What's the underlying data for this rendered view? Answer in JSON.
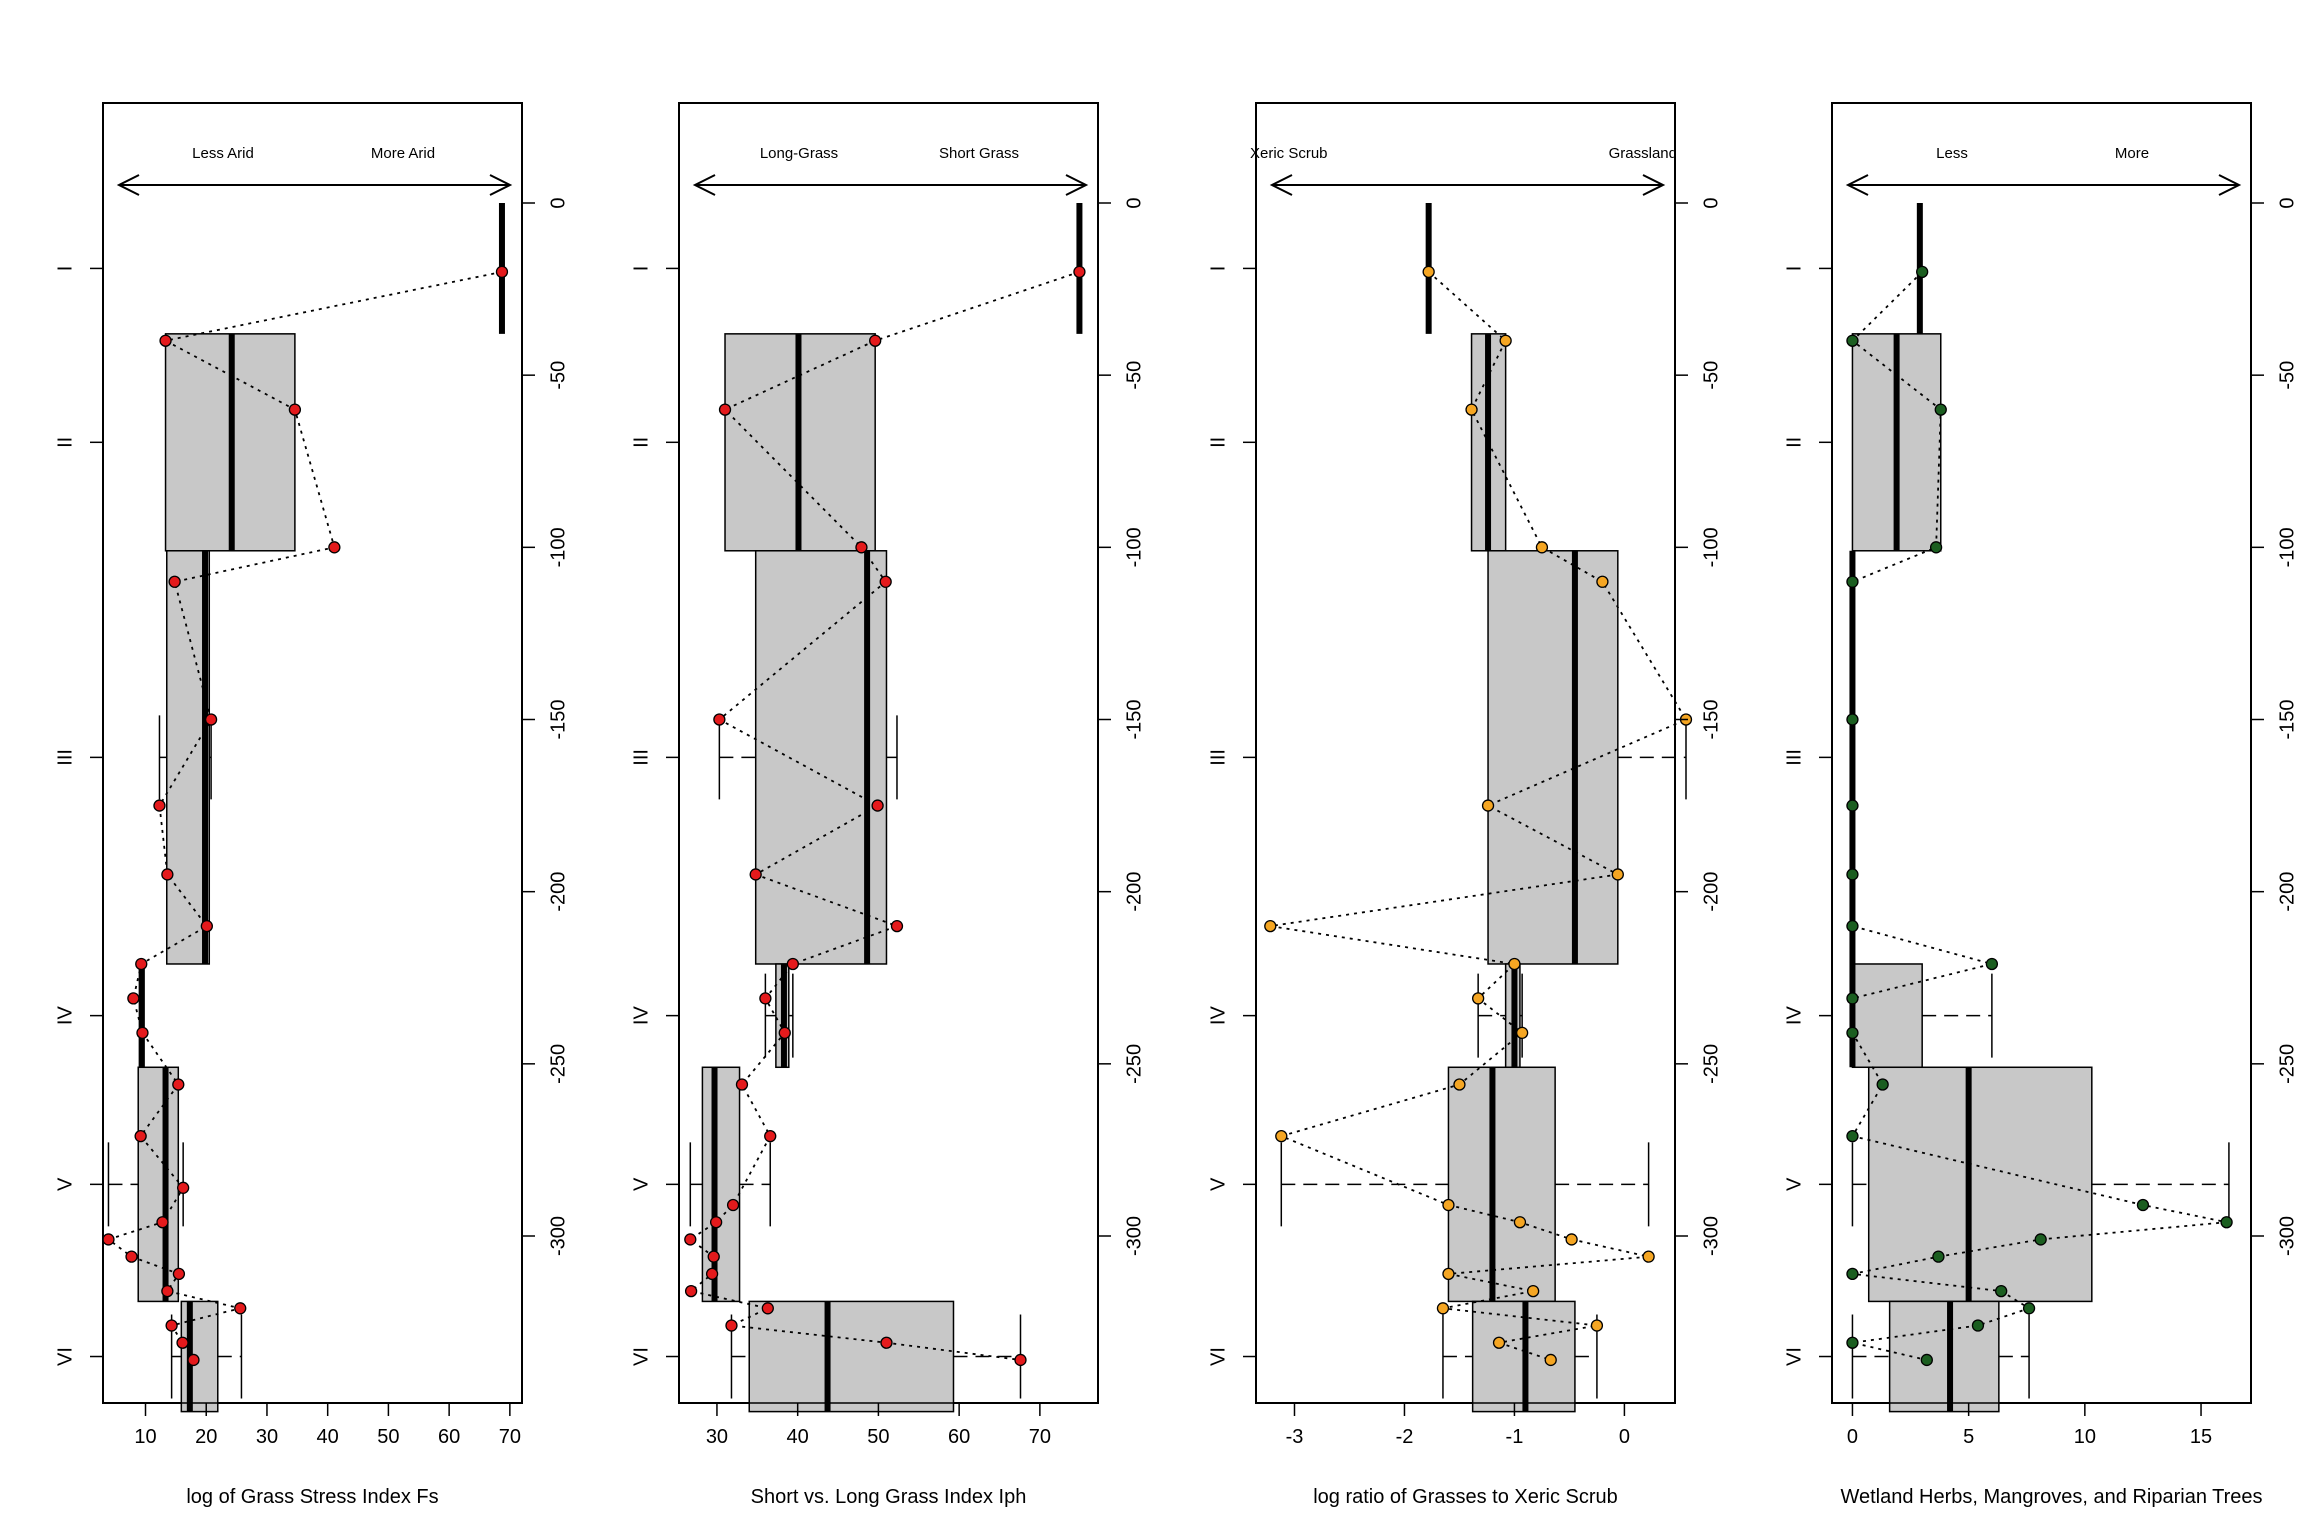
{
  "chart_data": [
    {
      "type": "boxplot-depth-profile",
      "xlabel": "log of Grass Stress Index Fs",
      "xticks": [
        10,
        20,
        30,
        40,
        50,
        60,
        70
      ],
      "xlim": [
        3,
        72
      ],
      "arrow_labels": {
        "left": "Less Arid",
        "right": "More Arid"
      },
      "point_color": "#e41a1c",
      "boxes": [
        {
          "zone": "I",
          "y0": 0,
          "y1": 38,
          "q1": 68.7,
          "median": 68.7,
          "q3": 68.7,
          "wlo": 68.7,
          "whi": 68.7
        },
        {
          "zone": "II",
          "y0": 38,
          "y1": 101,
          "q1": 13.3,
          "median": 24.2,
          "q3": 34.6,
          "wlo": 13.3,
          "whi": 34.6
        },
        {
          "zone": "III",
          "y0": 101,
          "y1": 221,
          "q1": 13.5,
          "median": 19.8,
          "q3": 20.5,
          "wlo": 12.3,
          "whi": 20.8
        },
        {
          "zone": "IV",
          "y0": 221,
          "y1": 251,
          "q1": 9.0,
          "median": 9.4,
          "q3": 9.6,
          "wlo": 9.0,
          "whi": 9.6
        },
        {
          "zone": "V",
          "y0": 251,
          "y1": 319,
          "q1": 8.8,
          "median": 13.3,
          "q3": 15.4,
          "wlo": 3.9,
          "whi": 16.2
        },
        {
          "zone": "VI",
          "y0": 319,
          "y1": 351,
          "q1": 15.9,
          "median": 17.3,
          "q3": 21.9,
          "wlo": 14.3,
          "whi": 25.8
        }
      ],
      "points": [
        [
          68.7,
          20
        ],
        [
          13.3,
          40
        ],
        [
          34.6,
          60
        ],
        [
          41.1,
          100
        ],
        [
          14.8,
          110
        ],
        [
          20.8,
          150
        ],
        [
          12.3,
          175
        ],
        [
          13.6,
          195
        ],
        [
          20.1,
          210
        ],
        [
          9.3,
          221
        ],
        [
          8.0,
          231
        ],
        [
          9.5,
          241
        ],
        [
          15.4,
          256
        ],
        [
          9.2,
          271
        ],
        [
          16.2,
          286
        ],
        [
          12.8,
          296
        ],
        [
          3.9,
          301
        ],
        [
          7.7,
          306
        ],
        [
          15.5,
          311
        ],
        [
          13.6,
          316
        ],
        [
          25.6,
          321
        ],
        [
          14.3,
          326
        ],
        [
          16.1,
          331
        ],
        [
          17.9,
          336
        ]
      ]
    },
    {
      "type": "boxplot-depth-profile",
      "xlabel": "Short vs. Long Grass Index Iph",
      "xticks": [
        30,
        40,
        50,
        60,
        70
      ],
      "xlim": [
        25.3,
        77.2
      ],
      "arrow_labels": {
        "left": "Long-Grass",
        "right": "Short Grass"
      },
      "point_color": "#e41a1c",
      "boxes": [
        {
          "zone": "I",
          "y0": 0,
          "y1": 38,
          "q1": 74.9,
          "median": 74.9,
          "q3": 74.9,
          "wlo": 74.9,
          "whi": 74.9
        },
        {
          "zone": "II",
          "y0": 38,
          "y1": 101,
          "q1": 31.0,
          "median": 40.1,
          "q3": 49.6,
          "wlo": 31.0,
          "whi": 49.6
        },
        {
          "zone": "III",
          "y0": 101,
          "y1": 221,
          "q1": 34.8,
          "median": 48.6,
          "q3": 51.0,
          "wlo": 30.3,
          "whi": 52.3
        },
        {
          "zone": "IV",
          "y0": 221,
          "y1": 251,
          "q1": 37.3,
          "median": 38.3,
          "q3": 38.9,
          "wlo": 36.0,
          "whi": 39.4
        },
        {
          "zone": "V",
          "y0": 251,
          "y1": 319,
          "q1": 28.2,
          "median": 29.7,
          "q3": 32.8,
          "wlo": 26.7,
          "whi": 36.6
        },
        {
          "zone": "VI",
          "y0": 319,
          "y1": 351,
          "q1": 34.0,
          "median": 43.7,
          "q3": 59.3,
          "wlo": 31.8,
          "whi": 67.6
        }
      ],
      "points": [
        [
          74.9,
          20
        ],
        [
          49.6,
          40
        ],
        [
          31.0,
          60
        ],
        [
          47.9,
          100
        ],
        [
          50.9,
          110
        ],
        [
          30.3,
          150
        ],
        [
          49.9,
          175
        ],
        [
          34.8,
          195
        ],
        [
          52.3,
          210
        ],
        [
          39.4,
          221
        ],
        [
          36.0,
          231
        ],
        [
          38.4,
          241
        ],
        [
          33.1,
          256
        ],
        [
          36.6,
          271
        ],
        [
          32.0,
          291
        ],
        [
          29.9,
          296
        ],
        [
          26.7,
          301
        ],
        [
          29.6,
          306
        ],
        [
          29.4,
          311
        ],
        [
          26.8,
          316
        ],
        [
          36.3,
          321
        ],
        [
          31.8,
          326
        ],
        [
          51.0,
          331
        ],
        [
          67.6,
          336
        ]
      ]
    },
    {
      "type": "boxplot-depth-profile",
      "xlabel": "log ratio of Grasses to Xeric Scrub",
      "xticks": [
        -3,
        -2,
        -1,
        0
      ],
      "xlim": [
        -3.35,
        0.46
      ],
      "arrow_labels": {
        "left": "Xeric Scrub",
        "right": "Grassland"
      },
      "point_color": "#f5a623",
      "boxes": [
        {
          "zone": "I",
          "y0": 0,
          "y1": 38,
          "q1": -1.78,
          "median": -1.78,
          "q3": -1.78,
          "wlo": -1.78,
          "whi": -1.78
        },
        {
          "zone": "II",
          "y0": 38,
          "y1": 101,
          "q1": -1.39,
          "median": -1.24,
          "q3": -1.08,
          "wlo": -1.39,
          "whi": -1.08
        },
        {
          "zone": "III",
          "y0": 101,
          "y1": 221,
          "q1": -1.24,
          "median": -0.45,
          "q3": -0.06,
          "wlo": -1.24,
          "whi": 0.56
        },
        {
          "zone": "IV",
          "y0": 221,
          "y1": 251,
          "q1": -1.08,
          "median": -1.0,
          "q3": -0.95,
          "wlo": -1.33,
          "whi": -0.93
        },
        {
          "zone": "V",
          "y0": 251,
          "y1": 319,
          "q1": -1.6,
          "median": -1.2,
          "q3": -0.63,
          "wlo": -3.12,
          "whi": 0.22
        },
        {
          "zone": "VI",
          "y0": 319,
          "y1": 351,
          "q1": -1.38,
          "median": -0.9,
          "q3": -0.45,
          "wlo": -1.65,
          "whi": -0.25
        }
      ],
      "points": [
        [
          -1.78,
          20
        ],
        [
          -1.08,
          40
        ],
        [
          -1.39,
          60
        ],
        [
          -0.75,
          100
        ],
        [
          -0.2,
          110
        ],
        [
          0.56,
          150
        ],
        [
          -1.24,
          175
        ],
        [
          -0.06,
          195
        ],
        [
          -3.22,
          210
        ],
        [
          -1.0,
          221
        ],
        [
          -1.33,
          231
        ],
        [
          -0.93,
          241
        ],
        [
          -1.5,
          256
        ],
        [
          -3.12,
          271
        ],
        [
          -1.6,
          291
        ],
        [
          -0.95,
          296
        ],
        [
          -0.48,
          301
        ],
        [
          0.22,
          306
        ],
        [
          -1.6,
          311
        ],
        [
          -0.83,
          316
        ],
        [
          -1.65,
          321
        ],
        [
          -0.25,
          326
        ],
        [
          -1.14,
          331
        ],
        [
          -0.67,
          336
        ]
      ]
    },
    {
      "type": "boxplot-depth-profile",
      "xlabel": "Wetland Herbs, Mangroves, and Riparian Trees",
      "xticks": [
        0,
        5,
        10,
        15
      ],
      "xlim": [
        -0.88,
        17.15
      ],
      "arrow_labels": {
        "left": "Less",
        "right": "More"
      },
      "point_color": "#1b5e20",
      "boxes": [
        {
          "zone": "I",
          "y0": 0,
          "y1": 38,
          "q1": 2.9,
          "median": 2.9,
          "q3": 2.9,
          "wlo": 2.9,
          "whi": 2.9
        },
        {
          "zone": "II",
          "y0": 38,
          "y1": 101,
          "q1": 0.0,
          "median": 1.9,
          "q3": 3.8,
          "wlo": 0.0,
          "whi": 3.8
        },
        {
          "zone": "III",
          "y0": 101,
          "y1": 221,
          "q1": 0.0,
          "median": 0.0,
          "q3": 0.0,
          "wlo": 0.0,
          "whi": 0.0
        },
        {
          "zone": "IV",
          "y0": 221,
          "y1": 251,
          "q1": 0.0,
          "median": 0.0,
          "q3": 3.0,
          "wlo": 0.0,
          "whi": 6.0
        },
        {
          "zone": "V",
          "y0": 251,
          "y1": 319,
          "q1": 0.7,
          "median": 5.0,
          "q3": 10.3,
          "wlo": 0.0,
          "whi": 16.2
        },
        {
          "zone": "VI",
          "y0": 319,
          "y1": 351,
          "q1": 1.6,
          "median": 4.2,
          "q3": 6.3,
          "wlo": 0.0,
          "whi": 7.6
        }
      ],
      "points": [
        [
          3.0,
          20
        ],
        [
          0.0,
          40
        ],
        [
          3.8,
          60
        ],
        [
          3.6,
          100
        ],
        [
          0.0,
          110
        ],
        [
          0.0,
          150
        ],
        [
          0.0,
          175
        ],
        [
          0.0,
          195
        ],
        [
          0.0,
          210
        ],
        [
          6.0,
          221
        ],
        [
          0.0,
          231
        ],
        [
          0.0,
          241
        ],
        [
          1.3,
          256
        ],
        [
          0.0,
          271
        ],
        [
          12.5,
          291
        ],
        [
          16.1,
          296
        ],
        [
          8.1,
          301
        ],
        [
          3.7,
          306
        ],
        [
          0.0,
          311
        ],
        [
          6.4,
          316
        ],
        [
          7.6,
          321
        ],
        [
          5.4,
          326
        ],
        [
          0.0,
          331
        ],
        [
          3.2,
          336
        ]
      ]
    }
  ],
  "y_axis": {
    "ticks": [
      0,
      -50,
      -100,
      -150,
      -200,
      -250,
      -300
    ],
    "zones": [
      {
        "label": "I",
        "depth": 19
      },
      {
        "label": "II",
        "depth": 69.5
      },
      {
        "label": "III",
        "depth": 161
      },
      {
        "label": "IV",
        "depth": 236
      },
      {
        "label": "V",
        "depth": 285
      },
      {
        "label": "VI",
        "depth": 335
      }
    ]
  }
}
